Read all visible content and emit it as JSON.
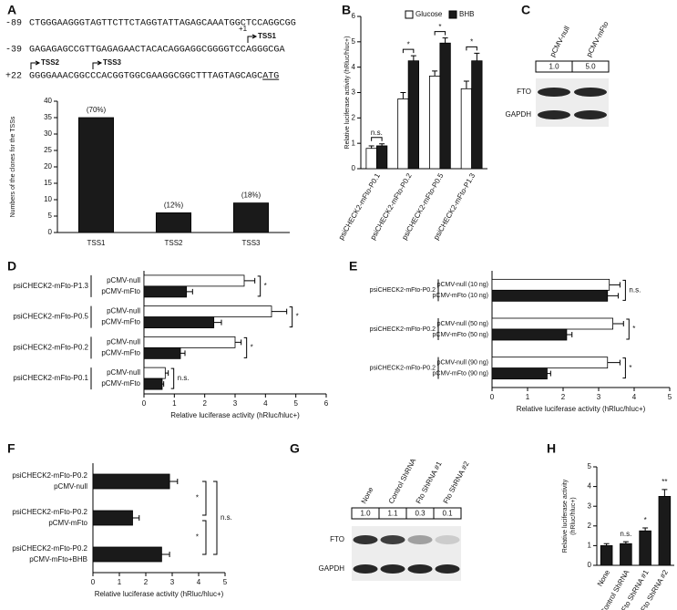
{
  "panel_labels": [
    "A",
    "B",
    "C",
    "D",
    "E",
    "F",
    "G",
    "H"
  ],
  "sequence": {
    "lines": [
      {
        "position": "-89",
        "text": "CTGGGAAGGGTAGTTCTTCTAGGTATTAGAGCAAATGGCTCCAGGCGG"
      },
      {
        "position": "-39",
        "text": "GAGAGAGCCGTTGAGAGAACTACACAGGAGGCGGGGTCCAGGGCGA"
      },
      {
        "position": "+22",
        "text": "GGGGAAACGGCCCACGGTGGCGAAGGCGGCTTTAGTAGCAGC"
      }
    ],
    "start_codon": "ATG",
    "tss_labels": [
      "+1",
      "TSS1",
      "TSS2",
      "TSS3"
    ]
  },
  "blots": [
    {
      "lanes": [
        "pCMV-null",
        "pCMV-mFto"
      ],
      "ratios": [
        "1.0",
        "5.0"
      ],
      "rows": [
        "FTO",
        "GAPDH"
      ]
    },
    {
      "lanes": [
        "None",
        "Control ShRNA",
        "Fto ShRNA #1",
        "Fto ShRNA #2"
      ],
      "ratios": [
        "1.0",
        "1.1",
        "0.3",
        "0.1"
      ],
      "rows": [
        "FTO",
        "GAPDH"
      ]
    }
  ],
  "chart_data": [
    {
      "type": "bar",
      "categories": [
        "TSS1",
        "TSS2",
        "TSS3"
      ],
      "values": [
        35,
        6,
        9
      ],
      "color": "#1a1a1a",
      "annotations": [
        "(70%)",
        "(12%)",
        "(18%)"
      ],
      "ylim": [
        0,
        40
      ],
      "yticks": [
        0,
        5,
        10,
        15,
        20,
        25,
        30,
        35,
        40
      ],
      "ylabel": "Numbers of the clones for the TSSs"
    },
    {
      "type": "bar",
      "categories": [
        "psiCHECK2-mFto-P0.1",
        "psiCHECK2-mFto-P0.2",
        "psiCHECK2-mFto-P0.5",
        "psiCHECK2-mFto-P1.3"
      ],
      "series": [
        {
          "name": "Glucose",
          "color": "#ffffff",
          "values": [
            0.8,
            2.75,
            3.65,
            3.15
          ],
          "errors": [
            0.1,
            0.25,
            0.2,
            0.3
          ]
        },
        {
          "name": "BHB",
          "color": "#1a1a1a",
          "values": [
            0.9,
            4.25,
            4.95,
            4.25
          ],
          "errors": [
            0.08,
            0.2,
            0.2,
            0.3
          ]
        }
      ],
      "annotations": [
        "n.s.",
        "*",
        "*",
        "*"
      ],
      "ylim": [
        0,
        6
      ],
      "yticks": [
        0,
        1,
        2,
        3,
        4,
        5,
        6
      ],
      "ylabel": "Relative luciferase activity (hRluc/hluc+)"
    },
    {
      "type": "hbar",
      "categories": [
        "psiCHECK2-mFto-P1.3",
        "psiCHECK2-mFto-P0.5",
        "psiCHECK2-mFto-P0.2",
        "psiCHECK2-mFto-P0.1"
      ],
      "series": [
        {
          "name": "pCMV-null",
          "color": "#ffffff",
          "values": [
            3.3,
            4.2,
            3.0,
            0.7
          ],
          "errors": [
            0.35,
            0.5,
            0.2,
            0.1
          ]
        },
        {
          "name": "pCMV-mFto",
          "color": "#1a1a1a",
          "values": [
            1.4,
            2.3,
            1.2,
            0.6
          ],
          "errors": [
            0.2,
            0.25,
            0.15,
            0.05
          ]
        }
      ],
      "annotations": [
        "*",
        "*",
        "*",
        "n.s."
      ],
      "xlim": [
        0,
        6
      ],
      "xticks": [
        0,
        1,
        2,
        3,
        4,
        5,
        6
      ],
      "xlabel": "Relative luciferase activity (hRluc/hluc+)"
    },
    {
      "type": "hbar",
      "categories": [
        "psiCHECK2-mFto-P0.2",
        "psiCHECK2-mFto-P0.2",
        "psiCHECK2-mFto-P0.2"
      ],
      "row_labels": [
        [
          "pCMV-null (10 ng)",
          "pCMV-mFto (10 ng)"
        ],
        [
          "pCMV-null (50 ng)",
          "pCMV-mFto (50 ng)"
        ],
        [
          "pCMV-null (90 ng)",
          "pCMV-mFto (90 ng)"
        ]
      ],
      "series": [
        {
          "color": "#ffffff",
          "values": [
            3.3,
            3.4,
            3.25
          ],
          "errors": [
            0.3,
            0.3,
            0.35
          ]
        },
        {
          "color": "#1a1a1a",
          "values": [
            3.25,
            2.1,
            1.55
          ],
          "errors": [
            0.3,
            0.15,
            0.1
          ]
        }
      ],
      "annotations": [
        "n.s.",
        "*",
        "*"
      ],
      "xlim": [
        0,
        5
      ],
      "xticks": [
        0,
        1,
        2,
        3,
        4,
        5
      ],
      "xlabel": "Relative luciferase activity (hRluc/hluc+)"
    },
    {
      "type": "hbar",
      "categories": [
        "pCMV-null",
        "pCMV-mFto",
        "pCMV-mFto+BHB"
      ],
      "category_prefix": [
        "psiCHECK2-mFto-P0.2",
        "psiCHECK2-mFto-P0.2",
        "psiCHECK2-mFto-P0.2"
      ],
      "values": [
        2.9,
        1.5,
        2.6
      ],
      "errors": [
        0.3,
        0.25,
        0.3
      ],
      "color": "#1a1a1a",
      "brackets": [
        "*",
        "*",
        "n.s."
      ],
      "xlim": [
        0,
        5
      ],
      "xticks": [
        0,
        1,
        2,
        3,
        4,
        5
      ],
      "xlabel": "Relative luciferase activity (hRluc/hluc+)"
    },
    {
      "type": "bar",
      "categories": [
        "None",
        "Control ShRNA",
        "Fto ShRNA #1",
        "Fto ShRNA #2"
      ],
      "values": [
        1.0,
        1.1,
        1.75,
        3.5
      ],
      "errors": [
        0.1,
        0.1,
        0.15,
        0.35
      ],
      "color": "#1a1a1a",
      "annotations": [
        null,
        "n.s.",
        "*",
        "**"
      ],
      "ylim": [
        0,
        5
      ],
      "yticks": [
        0,
        1,
        2,
        3,
        4,
        5
      ],
      "ylabel": [
        "Relative luciferase activity",
        "(hRluc/hluc+)"
      ]
    }
  ]
}
